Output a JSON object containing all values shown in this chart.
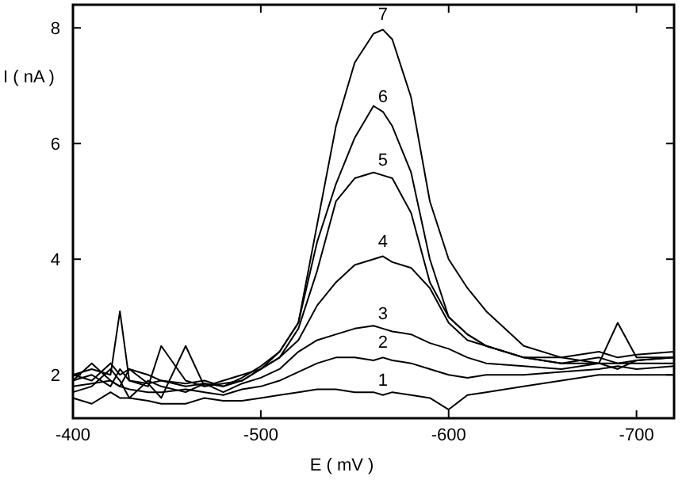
{
  "chart_data": {
    "type": "line",
    "xlabel": "E ( mV )",
    "ylabel": "I ( nA )",
    "x": [
      -400,
      -410,
      -420,
      -425,
      -430,
      -440,
      -447,
      -460,
      -470,
      -480,
      -490,
      -500,
      -510,
      -520,
      -530,
      -540,
      -550,
      -560,
      -565,
      -570,
      -580,
      -590,
      -600,
      -610,
      -620,
      -640,
      -660,
      -680,
      -690,
      -700,
      -720
    ],
    "series": [
      {
        "name": "1",
        "color": "#000000",
        "values": [
          1.6,
          1.5,
          1.7,
          1.6,
          1.6,
          1.55,
          1.5,
          1.5,
          1.6,
          1.55,
          1.55,
          1.6,
          1.65,
          1.7,
          1.75,
          1.75,
          1.7,
          1.7,
          1.65,
          1.7,
          1.65,
          1.6,
          1.4,
          1.65,
          1.7,
          1.8,
          1.9,
          2.0,
          2.0,
          2.0,
          2.0
        ]
      },
      {
        "name": "2",
        "color": "#000000",
        "values": [
          1.8,
          1.85,
          1.9,
          1.8,
          1.75,
          1.7,
          1.7,
          1.75,
          1.7,
          1.65,
          1.75,
          1.8,
          1.9,
          2.05,
          2.2,
          2.3,
          2.3,
          2.25,
          2.3,
          2.25,
          2.2,
          2.1,
          2.0,
          1.95,
          2.0,
          2.0,
          2.05,
          2.1,
          2.15,
          2.1,
          2.15
        ]
      },
      {
        "name": "3",
        "color": "#000000",
        "values": [
          1.9,
          2.0,
          1.8,
          2.1,
          1.9,
          1.85,
          1.9,
          1.8,
          1.85,
          1.7,
          1.85,
          1.95,
          2.1,
          2.4,
          2.6,
          2.7,
          2.8,
          2.85,
          2.8,
          2.75,
          2.7,
          2.55,
          2.45,
          2.3,
          2.2,
          2.15,
          2.1,
          2.2,
          2.2,
          2.25,
          2.3
        ]
      },
      {
        "name": "4",
        "color": "#000000",
        "values": [
          2.0,
          2.1,
          2.0,
          3.1,
          1.9,
          1.8,
          2.5,
          1.9,
          1.8,
          1.9,
          2.0,
          2.1,
          2.3,
          2.6,
          3.2,
          3.6,
          3.9,
          4.0,
          4.05,
          3.95,
          3.85,
          3.5,
          2.9,
          2.6,
          2.5,
          2.3,
          2.2,
          2.2,
          2.9,
          2.3,
          2.3
        ]
      },
      {
        "name": "5",
        "color": "#000000",
        "values": [
          1.9,
          2.2,
          1.9,
          1.8,
          2.1,
          1.85,
          1.6,
          2.5,
          1.8,
          1.85,
          1.9,
          2.1,
          2.3,
          2.8,
          3.8,
          5.0,
          5.4,
          5.5,
          5.45,
          5.4,
          4.8,
          3.6,
          3.0,
          2.7,
          2.5,
          2.3,
          2.3,
          2.2,
          2.1,
          2.25,
          2.3
        ]
      },
      {
        "name": "6",
        "color": "#000000",
        "values": [
          1.7,
          1.8,
          2.1,
          1.9,
          1.6,
          1.9,
          1.8,
          1.7,
          1.85,
          1.8,
          1.9,
          2.1,
          2.4,
          2.9,
          4.3,
          5.3,
          6.1,
          6.65,
          6.55,
          6.3,
          5.5,
          4.0,
          3.0,
          2.7,
          2.5,
          2.3,
          2.2,
          2.3,
          2.2,
          2.2,
          2.2
        ]
      },
      {
        "name": "7",
        "color": "#000000",
        "values": [
          2.0,
          1.9,
          2.2,
          2.0,
          2.1,
          2.0,
          1.9,
          1.85,
          1.9,
          1.8,
          1.95,
          2.15,
          2.4,
          2.9,
          4.6,
          6.3,
          7.4,
          7.9,
          7.97,
          7.8,
          6.8,
          5.0,
          4.0,
          3.5,
          3.1,
          2.5,
          2.3,
          2.4,
          2.3,
          2.35,
          2.4
        ]
      }
    ],
    "xlim": [
      -400,
      -720
    ],
    "ylim": [
      1.25,
      8.4
    ],
    "xticks": [
      -400,
      -500,
      -600,
      -700
    ],
    "yticks": [
      2,
      4,
      6,
      8
    ],
    "grid": false,
    "marker": "none",
    "line_style": "solid"
  }
}
